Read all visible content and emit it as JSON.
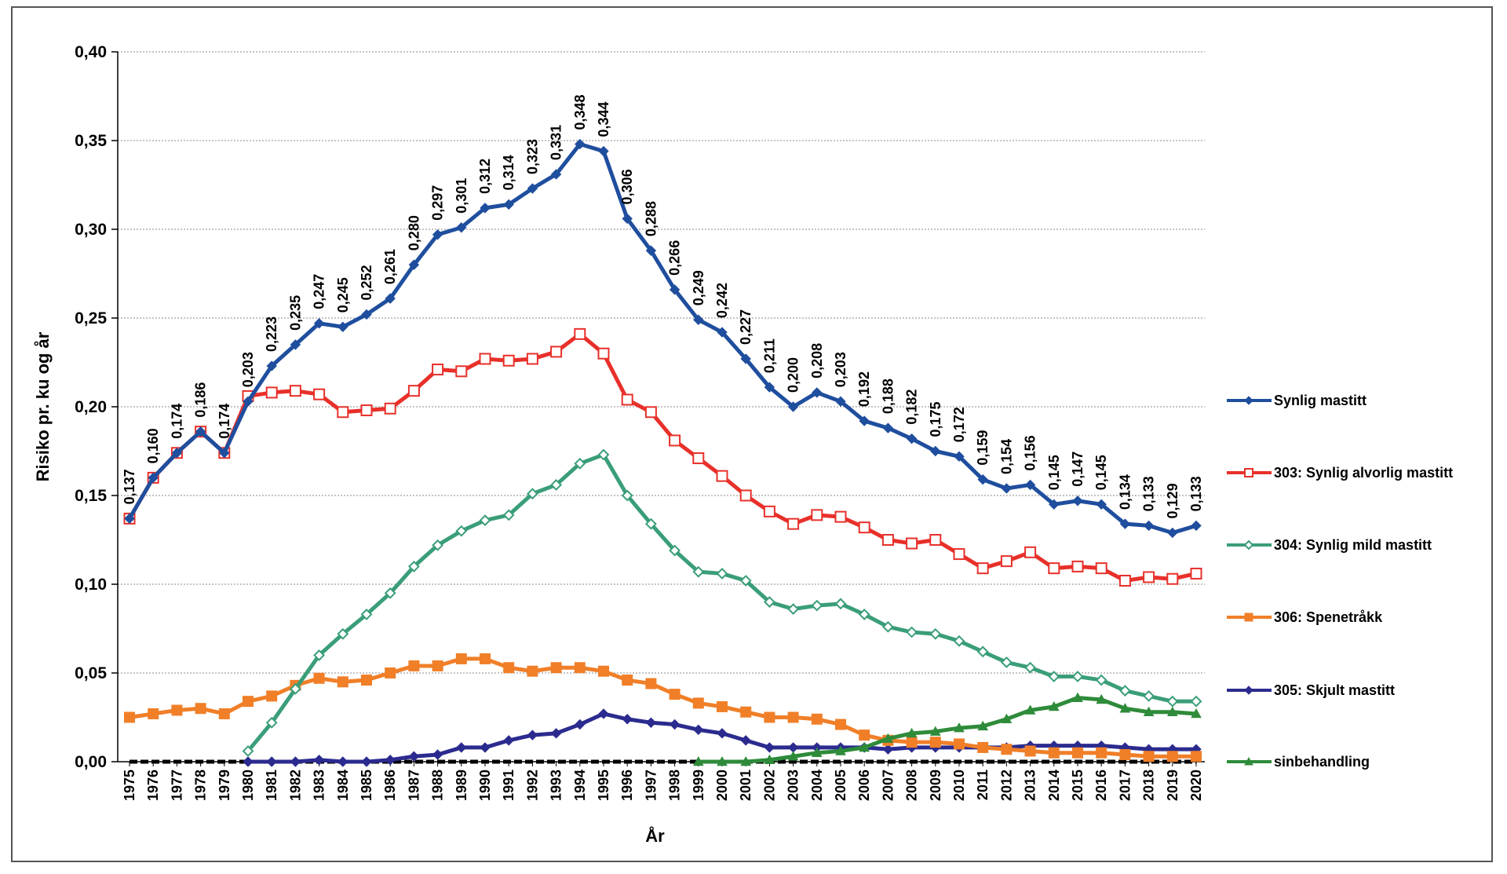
{
  "chart_data": {
    "type": "line",
    "title": "",
    "xlabel": "År",
    "ylabel": "Risiko pr. ku og år",
    "ylim": [
      0,
      0.4
    ],
    "yticks": [
      "0,00",
      "0,05",
      "0,10",
      "0,15",
      "0,20",
      "0,25",
      "0,30",
      "0,35",
      "0,40"
    ],
    "grid": "horizontal",
    "legend_position": "right",
    "categories": [
      "1975",
      "1976",
      "1977",
      "1978",
      "1979",
      "1980",
      "1981",
      "1982",
      "1983",
      "1984",
      "1985",
      "1986",
      "1987",
      "1988",
      "1989",
      "1990",
      "1991",
      "1992",
      "1993",
      "1994",
      "1995",
      "1996",
      "1997",
      "1998",
      "1999",
      "2000",
      "2001",
      "2002",
      "2003",
      "2004",
      "2005",
      "2006",
      "2007",
      "2008",
      "2009",
      "2010",
      "2011",
      "2012",
      "2013",
      "2014",
      "2015",
      "2016",
      "2017",
      "2018",
      "2019",
      "2020"
    ],
    "series": [
      {
        "name": "Synlig mastitt",
        "color": "#1f4e9e",
        "marker": "diamond-filled",
        "values": [
          0.137,
          0.16,
          0.174,
          0.186,
          0.174,
          0.203,
          0.223,
          0.235,
          0.247,
          0.245,
          0.252,
          0.261,
          0.28,
          0.297,
          0.301,
          0.312,
          0.314,
          0.323,
          0.331,
          0.348,
          0.344,
          0.306,
          0.288,
          0.266,
          0.249,
          0.242,
          0.227,
          0.211,
          0.2,
          0.208,
          0.203,
          0.192,
          0.188,
          0.182,
          0.175,
          0.172,
          0.159,
          0.154,
          0.156,
          0.145,
          0.147,
          0.145,
          0.134,
          0.133,
          0.129,
          0.133
        ],
        "data_labels": [
          "0,137",
          "0,160",
          "0,174",
          "0,186",
          "0,174",
          "0,203",
          "0,223",
          "0,235",
          "0,247",
          "0,245",
          "0,252",
          "0,261",
          "0,280",
          "0,297",
          "0,301",
          "0,312",
          "0,314",
          "0,323",
          "0,331",
          "0,348",
          "0,344",
          "0,306",
          "0,288",
          "0,266",
          "0,249",
          "0,242",
          "0,227",
          "0,211",
          "0,200",
          "0,208",
          "0,203",
          "0,192",
          "0,188",
          "0,182",
          "0,175",
          "0,172",
          "0,159",
          "0,154",
          "0,156",
          "0,145",
          "0,147",
          "0,145",
          "0,134",
          "0,133",
          "0,129",
          "0,133"
        ]
      },
      {
        "name": "303: Synlig alvorlig mastitt",
        "color": "#e8302a",
        "marker": "square-open",
        "values": [
          0.137,
          0.16,
          0.174,
          0.186,
          0.174,
          0.206,
          0.208,
          0.209,
          0.207,
          0.197,
          0.198,
          0.199,
          0.209,
          0.221,
          0.22,
          0.227,
          0.226,
          0.227,
          0.231,
          0.241,
          0.23,
          0.204,
          0.197,
          0.181,
          0.171,
          0.161,
          0.15,
          0.141,
          0.134,
          0.139,
          0.138,
          0.132,
          0.125,
          0.123,
          0.125,
          0.117,
          0.109,
          0.113,
          0.118,
          0.109,
          0.11,
          0.109,
          0.102,
          0.104,
          0.103,
          0.106
        ]
      },
      {
        "name": "304: Synlig mild mastitt",
        "color": "#3a9e78",
        "marker": "diamond-open",
        "start_index": 5,
        "values": [
          null,
          null,
          null,
          null,
          null,
          0.006,
          0.022,
          0.041,
          0.06,
          0.072,
          0.083,
          0.095,
          0.11,
          0.122,
          0.13,
          0.136,
          0.139,
          0.151,
          0.156,
          0.168,
          0.173,
          0.15,
          0.134,
          0.119,
          0.107,
          0.106,
          0.102,
          0.09,
          0.086,
          0.088,
          0.089,
          0.083,
          0.076,
          0.073,
          0.072,
          0.068,
          0.062,
          0.056,
          0.053,
          0.048,
          0.048,
          0.046,
          0.04,
          0.037,
          0.034,
          0.034
        ]
      },
      {
        "name": "306: Spenetråkk",
        "color": "#f07f28",
        "marker": "square-filled",
        "values": [
          0.025,
          0.027,
          0.029,
          0.03,
          0.027,
          0.034,
          0.037,
          0.043,
          0.047,
          0.045,
          0.046,
          0.05,
          0.054,
          0.054,
          0.058,
          0.058,
          0.053,
          0.051,
          0.053,
          0.053,
          0.051,
          0.046,
          0.044,
          0.038,
          0.033,
          0.031,
          0.028,
          0.025,
          0.025,
          0.024,
          0.021,
          0.015,
          0.012,
          0.011,
          0.011,
          0.01,
          0.008,
          0.007,
          0.006,
          0.005,
          0.005,
          0.005,
          0.004,
          0.003,
          0.003,
          0.003
        ]
      },
      {
        "name": "305: Skjult mastitt",
        "color": "#2b2b8f",
        "marker": "diamond-filled",
        "start_index": 5,
        "values": [
          null,
          null,
          null,
          null,
          null,
          0.0,
          0.0,
          0.0,
          0.001,
          0.0,
          0.0,
          0.001,
          0.003,
          0.004,
          0.008,
          0.008,
          0.012,
          0.015,
          0.016,
          0.021,
          0.027,
          0.024,
          0.022,
          0.021,
          0.018,
          0.016,
          0.012,
          0.008,
          0.008,
          0.008,
          0.008,
          0.008,
          0.007,
          0.008,
          0.008,
          0.008,
          0.008,
          0.008,
          0.009,
          0.009,
          0.009,
          0.009,
          0.008,
          0.007,
          0.007,
          0.007
        ]
      },
      {
        "name": "sinbehandling",
        "color": "#2e8b3a",
        "marker": "triangle-filled",
        "start_index": 24,
        "values": [
          null,
          null,
          null,
          null,
          null,
          null,
          null,
          null,
          null,
          null,
          null,
          null,
          null,
          null,
          null,
          null,
          null,
          null,
          null,
          null,
          null,
          null,
          null,
          null,
          0.0,
          0.0,
          0.0,
          0.001,
          0.003,
          0.005,
          0.006,
          0.008,
          0.013,
          0.016,
          0.017,
          0.019,
          0.02,
          0.024,
          0.029,
          0.031,
          0.036,
          0.035,
          0.03,
          0.028,
          0.028,
          0.027
        ]
      },
      {
        "name": "",
        "color": "#000000",
        "marker": "baseline-dashed",
        "values": [
          0,
          0,
          0,
          0,
          0,
          0,
          0,
          0,
          0,
          0,
          0,
          0,
          0,
          0,
          0,
          0,
          0,
          0,
          0,
          0,
          0,
          0,
          0,
          0,
          0,
          0,
          0,
          0,
          0,
          0,
          0,
          0,
          0,
          0,
          0,
          0,
          0,
          0,
          0,
          0,
          0,
          0,
          0,
          0,
          0,
          0
        ]
      }
    ]
  }
}
